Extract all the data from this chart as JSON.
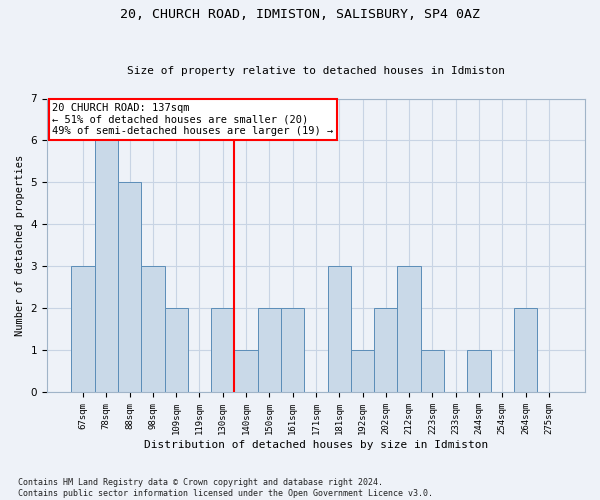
{
  "title1": "20, CHURCH ROAD, IDMISTON, SALISBURY, SP4 0AZ",
  "title2": "Size of property relative to detached houses in Idmiston",
  "xlabel": "Distribution of detached houses by size in Idmiston",
  "ylabel": "Number of detached properties",
  "categories": [
    "67sqm",
    "78sqm",
    "88sqm",
    "98sqm",
    "109sqm",
    "119sqm",
    "130sqm",
    "140sqm",
    "150sqm",
    "161sqm",
    "171sqm",
    "181sqm",
    "192sqm",
    "202sqm",
    "212sqm",
    "223sqm",
    "233sqm",
    "244sqm",
    "254sqm",
    "264sqm",
    "275sqm"
  ],
  "values": [
    3,
    6,
    5,
    3,
    2,
    0,
    2,
    1,
    2,
    2,
    0,
    3,
    1,
    2,
    3,
    1,
    0,
    1,
    0,
    2,
    0
  ],
  "bar_color": "#c9d9e8",
  "bar_edge_color": "#5b8db8",
  "grid_color": "#c8d4e4",
  "vline_color": "red",
  "vline_index": 7,
  "annotation_text": "20 CHURCH ROAD: 137sqm\n← 51% of detached houses are smaller (20)\n49% of semi-detached houses are larger (19) →",
  "annotation_box_color": "white",
  "annotation_box_edge": "red",
  "ylim": [
    0,
    7
  ],
  "yticks": [
    0,
    1,
    2,
    3,
    4,
    5,
    6,
    7
  ],
  "footnote": "Contains HM Land Registry data © Crown copyright and database right 2024.\nContains public sector information licensed under the Open Government Licence v3.0.",
  "bg_color": "#eef2f8",
  "title1_fontsize": 9.5,
  "title2_fontsize": 8.0,
  "xlabel_fontsize": 8.0,
  "ylabel_fontsize": 7.5,
  "tick_fontsize": 6.5,
  "footnote_fontsize": 6.0,
  "annotation_fontsize": 7.5
}
